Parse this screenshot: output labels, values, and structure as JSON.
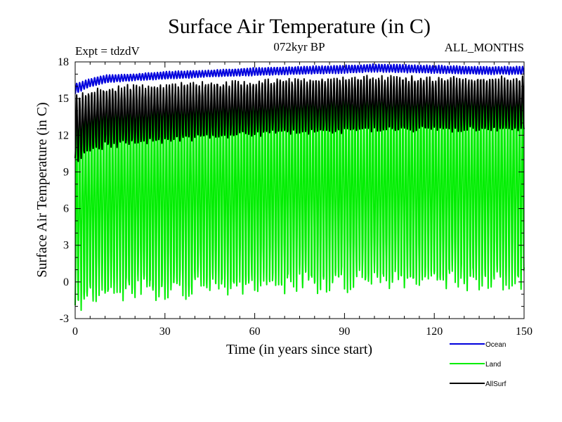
{
  "chart_data": {
    "type": "line",
    "title": "Surface Air Temperature (in C)",
    "subtitle": "072kyr BP",
    "left_label": "Expt = tdzdV",
    "right_label": "ALL_MONTHS",
    "xlabel": "Time (in years since start)",
    "ylabel": "Surface Air Temperature (in C)",
    "xlim": [
      0,
      150
    ],
    "ylim": [
      -3,
      18
    ],
    "x_ticks": [
      0,
      30,
      60,
      90,
      120,
      150
    ],
    "y_ticks": [
      -3,
      0,
      3,
      6,
      9,
      12,
      15,
      18
    ],
    "x_minor_step": 5,
    "y_minor_step": 1,
    "samples_per_year": 12,
    "legend_position": "bottom-right, below plot",
    "series": [
      {
        "name": "Ocean",
        "color": "#0000dd",
        "description": "seasonal cycle, annual min/max envelope",
        "anchor_years": [
          0,
          5,
          10,
          20,
          30,
          45,
          60,
          75,
          90,
          100,
          120,
          135,
          150
        ],
        "annual_min": [
          15.4,
          16.0,
          16.3,
          16.5,
          16.6,
          16.8,
          16.9,
          17.0,
          17.1,
          17.2,
          17.1,
          17.0,
          17.0
        ],
        "annual_max": [
          16.2,
          16.6,
          16.9,
          17.0,
          17.2,
          17.3,
          17.5,
          17.6,
          17.7,
          17.8,
          17.7,
          17.6,
          17.6
        ]
      },
      {
        "name": "Land",
        "color": "#00ee00",
        "description": "seasonal cycle, annual min/max envelope",
        "anchor_years": [
          0,
          5,
          10,
          20,
          30,
          45,
          60,
          75,
          90,
          100,
          120,
          135,
          150
        ],
        "annual_min": [
          -1.9,
          -1.2,
          -0.9,
          -0.6,
          -0.6,
          -0.4,
          -0.3,
          -0.1,
          0.0,
          0.1,
          0.2,
          0.2,
          0.3
        ],
        "annual_max": [
          13.5,
          14.0,
          14.3,
          14.5,
          14.7,
          14.9,
          15.0,
          15.2,
          15.3,
          15.4,
          15.4,
          15.4,
          15.4
        ]
      },
      {
        "name": "AllSurf",
        "color": "#000000",
        "description": "seasonal cycle, annual min/max envelope",
        "anchor_years": [
          0,
          5,
          10,
          20,
          30,
          45,
          60,
          75,
          90,
          100,
          120,
          135,
          150
        ],
        "annual_min": [
          10.0,
          10.8,
          11.2,
          11.4,
          11.6,
          11.9,
          12.1,
          12.3,
          12.4,
          12.5,
          12.5,
          12.5,
          12.5
        ],
        "annual_max": [
          15.0,
          15.5,
          15.8,
          15.9,
          16.0,
          16.2,
          16.3,
          16.5,
          16.6,
          16.7,
          16.6,
          16.6,
          16.6
        ]
      }
    ]
  }
}
